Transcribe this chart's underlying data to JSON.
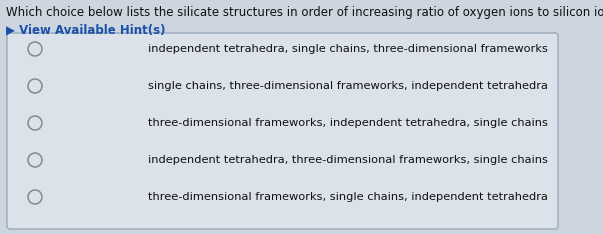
{
  "question": "Which choice below lists the silicate structures in order of increasing ratio of oxygen ions to silicon ions?",
  "hint_text": "▶ View Available Hint(s)",
  "hint_color": "#1a4faa",
  "options": [
    "independent tetrahedra, single chains, three-dimensional frameworks",
    "single chains, three-dimensional frameworks, independent tetrahedra",
    "three-dimensional frameworks, independent tetrahedra, single chains",
    "independent tetrahedra, three-dimensional frameworks, single chains",
    "three-dimensional frameworks, single chains, independent tetrahedra"
  ],
  "bg_color": "#cdd5df",
  "box_bg_color": "#dce2ea",
  "box_edge_color": "#9aaabb",
  "question_color": "#111111",
  "option_color": "#111111",
  "circle_edge_color": "#888888",
  "question_fontsize": 8.5,
  "hint_fontsize": 8.5,
  "option_fontsize": 8.2
}
